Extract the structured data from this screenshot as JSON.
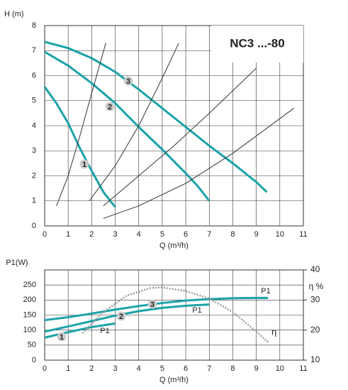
{
  "chart_data": [
    {
      "type": "line",
      "title": "NC3 ...-80",
      "ylabel": "H (m)",
      "xlabel": "Q (m³/h)",
      "xlim": [
        0,
        11
      ],
      "ylim": [
        0,
        8
      ],
      "xticks": [
        0,
        1,
        2,
        3,
        4,
        5,
        6,
        7,
        8,
        9,
        10,
        11
      ],
      "yticks": [
        0,
        1,
        2,
        3,
        4,
        5,
        6,
        7,
        8
      ],
      "grid": true,
      "series": [
        {
          "name": "1",
          "color": "#1aa3a8",
          "x": [
            0,
            0.5,
            1,
            1.5,
            2,
            2.5,
            3
          ],
          "values": [
            5.55,
            4.9,
            4.1,
            3.1,
            2.2,
            1.35,
            0.75
          ]
        },
        {
          "name": "2",
          "color": "#1aa3a8",
          "x": [
            0,
            1,
            2,
            3,
            4,
            5,
            6,
            6.5,
            7
          ],
          "values": [
            6.95,
            6.4,
            5.7,
            4.9,
            3.95,
            3.05,
            2.1,
            1.6,
            1.0
          ]
        },
        {
          "name": "3",
          "color": "#1aa3a8",
          "x": [
            0,
            1,
            2,
            3,
            4,
            5,
            6,
            7,
            8,
            9,
            9.45
          ],
          "values": [
            7.35,
            7.1,
            6.7,
            6.15,
            5.45,
            4.7,
            3.95,
            3.2,
            2.5,
            1.75,
            1.35
          ]
        },
        {
          "color": "#333333",
          "x": [
            0.5,
            1,
            1.5,
            2,
            2.6
          ],
          "values": [
            0.8,
            2.0,
            3.6,
            5.3,
            7.3
          ]
        },
        {
          "color": "#333333",
          "x": [
            1.9,
            3,
            4,
            5,
            5.7
          ],
          "values": [
            1.0,
            2.4,
            4.0,
            5.9,
            7.3
          ]
        },
        {
          "color": "#333333",
          "x": [
            2.5,
            4,
            5.5,
            7,
            9
          ],
          "values": [
            0.8,
            2.0,
            3.2,
            4.5,
            6.3
          ]
        },
        {
          "color": "#333333",
          "x": [
            2.5,
            4,
            6,
            8,
            10.6
          ],
          "values": [
            0.3,
            0.8,
            1.7,
            2.9,
            4.7
          ]
        }
      ]
    },
    {
      "type": "line",
      "ylabel": "P1(W)",
      "y2label": "η %",
      "xlabel": "Q (m³/h)",
      "xlim": [
        0,
        11
      ],
      "ylim": [
        0,
        300
      ],
      "y2lim": [
        10,
        40
      ],
      "xticks": [
        0,
        1,
        2,
        3,
        4,
        5,
        6,
        7,
        8,
        9,
        10,
        11
      ],
      "yticks": [
        0,
        50,
        100,
        150,
        200,
        250
      ],
      "y2ticks": [
        10,
        20,
        30,
        40
      ],
      "grid": true,
      "series": [
        {
          "name": "1",
          "label": "P1",
          "color": "#1aa3a8",
          "x": [
            0,
            1,
            2,
            3
          ],
          "values": [
            75,
            93,
            110,
            122
          ]
        },
        {
          "name": "2",
          "label": "P1",
          "color": "#1aa3a8",
          "x": [
            0,
            1,
            2,
            3,
            4,
            5,
            6,
            7
          ],
          "values": [
            95,
            112,
            130,
            148,
            163,
            174,
            181,
            185
          ]
        },
        {
          "name": "3",
          "label": "P1",
          "color": "#1aa3a8",
          "x": [
            0,
            1,
            2,
            3,
            4,
            5,
            6,
            7,
            8,
            9,
            9.5
          ],
          "values": [
            133,
            143,
            155,
            168,
            180,
            190,
            198,
            203,
            206,
            207,
            207
          ]
        },
        {
          "name": "η",
          "axis": "y2",
          "dashed": true,
          "color": "#999999",
          "x": [
            1.6,
            2.5,
            3.5,
            4.5,
            5,
            6,
            7,
            8,
            9,
            9.5
          ],
          "values": [
            19,
            26,
            31.5,
            34,
            34.2,
            33,
            30.5,
            26,
            19.5,
            16
          ]
        }
      ]
    }
  ]
}
